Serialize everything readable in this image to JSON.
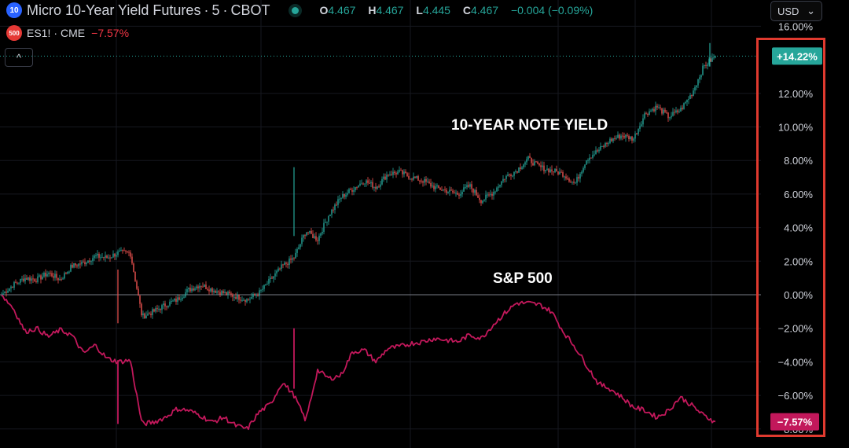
{
  "header": {
    "symbol_badge": "10",
    "symbol_title": "Micro 10-Year Yield Futures",
    "interval": "5",
    "exchange": "CBOT",
    "ohlc": {
      "o_label": "O",
      "o": "4.467",
      "h_label": "H",
      "h": "4.467",
      "l_label": "L",
      "l": "4.445",
      "c_label": "C",
      "c": "4.467",
      "change": "−0.004 (−0.09%)"
    },
    "compare_badge": "500",
    "compare_symbol": "ES1!",
    "compare_exchange": "CME",
    "compare_change": "−7.57%"
  },
  "controls": {
    "collapse_label": "^",
    "currency": "USD",
    "currency_caret": "⌄"
  },
  "annotations": {
    "yield": "10-YEAR NOTE YIELD",
    "sp500": "S&P 500"
  },
  "colors": {
    "up": "#26a69a",
    "down": "#ef5350",
    "sp500_line": "#c2185b",
    "zero_line": "#787b86",
    "highlight": "#e03a2f"
  },
  "chart_data": {
    "type": "line",
    "title": "",
    "xlabel": "",
    "ylabel": "",
    "ylim": [
      -8,
      16
    ],
    "y_ticks": [
      "16.00%",
      "12.00%",
      "10.00%",
      "8.00%",
      "6.00%",
      "4.00%",
      "2.00%",
      "0.00%",
      "−2.00%",
      "−4.00%",
      "−6.00%",
      "−8.00%"
    ],
    "series": [
      {
        "name": "Micro 10-Year Yield Futures",
        "style": "candlestick",
        "last_label": "+14.22%",
        "values": [
          0.0,
          0.6,
          1.0,
          0.9,
          1.3,
          0.9,
          1.7,
          1.9,
          2.3,
          2.2,
          2.5,
          2.5,
          -1.3,
          -1.0,
          -0.6,
          -0.3,
          0.3,
          0.6,
          0.3,
          0.1,
          -0.1,
          -0.3,
          0.1,
          0.9,
          1.7,
          2.2,
          3.8,
          3.3,
          4.8,
          5.8,
          6.3,
          6.8,
          6.4,
          7.2,
          7.3,
          7.0,
          6.8,
          6.4,
          6.2,
          6.0,
          6.5,
          5.6,
          6.1,
          7.0,
          7.4,
          8.1,
          7.6,
          7.4,
          7.2,
          6.6,
          8.1,
          8.6,
          9.2,
          9.5,
          9.3,
          10.8,
          11.2,
          10.6,
          11.0,
          12.0,
          13.6,
          14.22
        ]
      },
      {
        "name": "ES1!",
        "style": "line",
        "last_label": "−7.57%",
        "values": [
          0.0,
          -0.8,
          -2.2,
          -2.0,
          -2.5,
          -2.1,
          -2.4,
          -3.5,
          -3.0,
          -3.8,
          -4.0,
          -3.9,
          -7.7,
          -7.6,
          -7.3,
          -6.8,
          -6.9,
          -7.2,
          -7.6,
          -7.3,
          -7.8,
          -8.0,
          -7.0,
          -6.5,
          -5.2,
          -6.0,
          -7.5,
          -4.5,
          -5.0,
          -4.8,
          -3.4,
          -3.3,
          -4.0,
          -3.2,
          -3.1,
          -2.9,
          -2.8,
          -2.6,
          -2.7,
          -2.8,
          -2.4,
          -2.6,
          -1.8,
          -1.1,
          -0.5,
          -0.5,
          -0.6,
          -1.0,
          -2.2,
          -3.1,
          -4.2,
          -5.3,
          -5.6,
          -6.1,
          -6.7,
          -6.9,
          -7.3,
          -6.9,
          -6.1,
          -6.6,
          -7.2,
          -7.57
        ]
      }
    ]
  }
}
